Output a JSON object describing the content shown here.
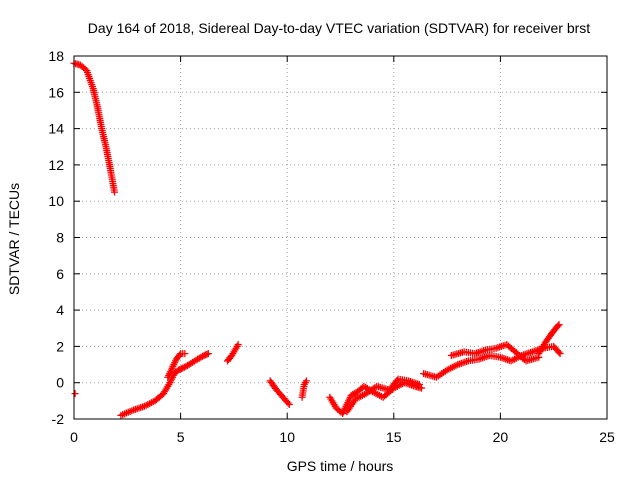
{
  "chart_data": {
    "type": "scatter",
    "title": "Day 164 of 2018, Sidereal Day-to-day VTEC variation (SDTVAR) for receiver brst",
    "xlabel": "GPS time / hours",
    "ylabel": "SDTVAR / TECUs",
    "xlim": [
      0,
      25
    ],
    "ylim": [
      -2,
      18
    ],
    "xticks": [
      0,
      5,
      10,
      15,
      20,
      25
    ],
    "yticks": [
      -2,
      0,
      2,
      4,
      6,
      8,
      10,
      12,
      14,
      16,
      18
    ],
    "grid": true,
    "marker": "+",
    "colors": {
      "series": "#ff0000",
      "axis": "#000000",
      "grid": "#a0a0a0"
    },
    "segments": [
      {
        "x": [
          0.0,
          0.3,
          0.6,
          0.9,
          1.1,
          1.3,
          1.5,
          1.7,
          1.9
        ],
        "y": [
          17.6,
          17.5,
          17.2,
          16.2,
          15.2,
          14.0,
          13.0,
          11.8,
          10.5
        ]
      },
      {
        "x": [
          0.05
        ],
        "y": [
          -0.6
        ]
      },
      {
        "x": [
          2.2,
          2.8,
          3.3,
          3.8,
          4.2,
          4.5,
          4.7,
          4.9,
          5.1,
          5.4,
          5.8,
          6.1,
          6.3
        ],
        "y": [
          -1.8,
          -1.5,
          -1.3,
          -1.0,
          -0.6,
          0.0,
          0.5,
          0.7,
          0.8,
          1.0,
          1.3,
          1.5,
          1.6
        ]
      },
      {
        "x": [
          4.4,
          4.6,
          4.8,
          5.0,
          5.2
        ],
        "y": [
          0.3,
          0.8,
          1.3,
          1.6,
          1.6
        ]
      },
      {
        "x": [
          7.2,
          7.4,
          7.6,
          7.7
        ],
        "y": [
          1.2,
          1.5,
          1.9,
          2.1
        ]
      },
      {
        "x": [
          9.2,
          9.5,
          9.8,
          10.1
        ],
        "y": [
          0.1,
          -0.4,
          -0.8,
          -1.2
        ]
      },
      {
        "x": [
          10.7,
          10.8,
          10.9
        ],
        "y": [
          -0.8,
          -0.1,
          0.1
        ]
      },
      {
        "x": [
          12.0,
          12.3,
          12.6,
          12.8,
          13.0,
          13.3,
          13.6,
          14.0,
          14.5,
          15.0,
          15.5,
          16.0,
          16.3
        ],
        "y": [
          -0.8,
          -1.4,
          -1.7,
          -1.2,
          -0.7,
          -0.5,
          -0.2,
          -0.5,
          -0.8,
          -0.3,
          0.0,
          -0.2,
          -0.3
        ]
      },
      {
        "x": [
          12.8,
          13.2,
          13.7,
          14.2,
          14.8,
          15.2,
          15.7,
          16.2
        ],
        "y": [
          -1.6,
          -0.9,
          -0.6,
          -0.2,
          -0.4,
          0.2,
          0.1,
          -0.1
        ]
      },
      {
        "x": [
          16.4,
          17.0,
          17.5,
          18.0,
          18.5,
          19.0,
          19.5,
          20.0,
          20.5,
          21.0,
          21.5,
          22.0,
          22.5,
          22.8
        ],
        "y": [
          0.5,
          0.3,
          0.7,
          1.0,
          1.2,
          1.3,
          1.5,
          1.4,
          1.2,
          1.5,
          1.7,
          1.9,
          2.0,
          1.6
        ]
      },
      {
        "x": [
          17.7,
          18.3,
          18.8,
          19.3,
          19.8,
          20.3,
          20.6,
          21.2,
          21.8
        ],
        "y": [
          1.5,
          1.7,
          1.6,
          1.8,
          1.9,
          2.1,
          1.8,
          1.2,
          1.4
        ]
      },
      {
        "x": [
          21.8,
          22.1,
          22.4,
          22.6,
          22.75
        ],
        "y": [
          1.6,
          2.2,
          2.7,
          3.0,
          3.2
        ]
      }
    ]
  }
}
